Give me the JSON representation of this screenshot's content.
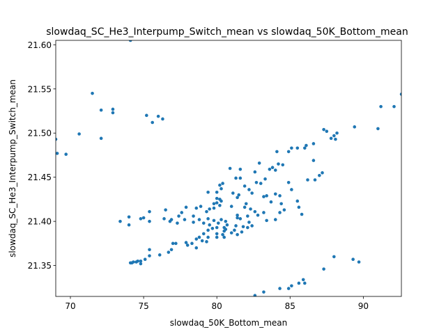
{
  "chart_data": {
    "type": "scatter",
    "title": "slowdaq_SC_He3_Interpump_Switch_mean vs slowdaq_50K_Bottom_mean",
    "xlabel": "slowdaq_50K_Bottom_mean",
    "ylabel": "slowdaq_SC_He3_Interpump_Switch_mean",
    "xlim": [
      69.0,
      92.6
    ],
    "ylim": [
      21.315,
      21.605
    ],
    "xticks": [
      70,
      75,
      80,
      85,
      90
    ],
    "yticks": [
      21.35,
      21.4,
      21.45,
      21.5,
      21.55,
      21.6
    ],
    "xtick_labels": [
      "70",
      "75",
      "80",
      "85",
      "90"
    ],
    "ytick_labels": [
      "21.35",
      "21.40",
      "21.45",
      "21.50",
      "21.55",
      "21.60"
    ],
    "marker_color": "#1f77b4",
    "grid": false,
    "points": [
      [
        74.1,
        21.605
      ],
      [
        71.5,
        21.545
      ],
      [
        72.1,
        21.526
      ],
      [
        72.9,
        21.527
      ],
      [
        72.9,
        21.523
      ],
      [
        75.2,
        21.52
      ],
      [
        76.0,
        21.519
      ],
      [
        76.3,
        21.516
      ],
      [
        75.6,
        21.512
      ],
      [
        70.6,
        21.499
      ],
      [
        72.1,
        21.494
      ],
      [
        69.0,
        21.493
      ],
      [
        69.1,
        21.477
      ],
      [
        69.7,
        21.476
      ],
      [
        92.6,
        21.544
      ],
      [
        91.2,
        21.53
      ],
      [
        92.1,
        21.53
      ],
      [
        89.4,
        21.507
      ],
      [
        91.0,
        21.505
      ],
      [
        87.3,
        21.504
      ],
      [
        87.5,
        21.502
      ],
      [
        88.2,
        21.5
      ],
      [
        88.0,
        21.497
      ],
      [
        87.8,
        21.494
      ],
      [
        88.1,
        21.493
      ],
      [
        86.1,
        21.486
      ],
      [
        86.0,
        21.483
      ],
      [
        85.5,
        21.483
      ],
      [
        85.1,
        21.483
      ],
      [
        84.9,
        21.479
      ],
      [
        84.1,
        21.479
      ],
      [
        86.6,
        21.488
      ],
      [
        86.6,
        21.469
      ],
      [
        84.2,
        21.465
      ],
      [
        84.5,
        21.464
      ],
      [
        83.8,
        21.461
      ],
      [
        83.6,
        21.459
      ],
      [
        84.0,
        21.458
      ],
      [
        82.9,
        21.466
      ],
      [
        82.6,
        21.456
      ],
      [
        81.6,
        21.459
      ],
      [
        80.9,
        21.46
      ],
      [
        87.0,
        21.452
      ],
      [
        87.2,
        21.455
      ],
      [
        86.7,
        21.447
      ],
      [
        86.2,
        21.447
      ],
      [
        84.9,
        21.444
      ],
      [
        83.3,
        21.448
      ],
      [
        83.0,
        21.443
      ],
      [
        82.7,
        21.444
      ],
      [
        81.3,
        21.449
      ],
      [
        81.6,
        21.449
      ],
      [
        81.9,
        21.44
      ],
      [
        80.4,
        21.443
      ],
      [
        80.2,
        21.441
      ],
      [
        80.3,
        21.437
      ],
      [
        80.0,
        21.433
      ],
      [
        79.4,
        21.433
      ],
      [
        81.5,
        21.43
      ],
      [
        81.1,
        21.432
      ],
      [
        81.4,
        21.427
      ],
      [
        82.2,
        21.436
      ],
      [
        82.4,
        21.432
      ],
      [
        83.2,
        21.428
      ],
      [
        83.4,
        21.429
      ],
      [
        84.0,
        21.431
      ],
      [
        84.3,
        21.429
      ],
      [
        85.1,
        21.436
      ],
      [
        85.5,
        21.423
      ],
      [
        84.4,
        21.42
      ],
      [
        83.7,
        21.422
      ],
      [
        82.0,
        21.42
      ],
      [
        81.9,
        21.416
      ],
      [
        82.3,
        21.414
      ],
      [
        81.0,
        21.417
      ],
      [
        80.3,
        21.423
      ],
      [
        80.0,
        21.426
      ],
      [
        80.2,
        21.425
      ],
      [
        80.0,
        21.421
      ],
      [
        79.8,
        21.42
      ],
      [
        80.2,
        21.418
      ],
      [
        79.5,
        21.414
      ],
      [
        79.8,
        21.415
      ],
      [
        78.9,
        21.417
      ],
      [
        78.6,
        21.415
      ],
      [
        79.3,
        21.411
      ],
      [
        77.9,
        21.416
      ],
      [
        77.6,
        21.41
      ],
      [
        76.5,
        21.413
      ],
      [
        77.4,
        21.406
      ],
      [
        78.4,
        21.406
      ],
      [
        75.4,
        21.411
      ],
      [
        75.0,
        21.404
      ],
      [
        74.8,
        21.403
      ],
      [
        74.0,
        21.405
      ],
      [
        74.0,
        21.396
      ],
      [
        73.4,
        21.4
      ],
      [
        75.4,
        21.4
      ],
      [
        76.4,
        21.403
      ],
      [
        76.9,
        21.402
      ],
      [
        76.8,
        21.4
      ],
      [
        77.3,
        21.398
      ],
      [
        78.4,
        21.399
      ],
      [
        77.8,
        21.402
      ],
      [
        78.8,
        21.402
      ],
      [
        79.1,
        21.398
      ],
      [
        79.4,
        21.403
      ],
      [
        79.8,
        21.401
      ],
      [
        80.1,
        21.398
      ],
      [
        80.3,
        21.402
      ],
      [
        80.6,
        21.4
      ],
      [
        81.4,
        21.404
      ],
      [
        81.4,
        21.407
      ],
      [
        81.6,
        21.403
      ],
      [
        82.1,
        21.406
      ],
      [
        82.2,
        21.399
      ],
      [
        82.8,
        21.407
      ],
      [
        82.6,
        21.411
      ],
      [
        83.2,
        21.41
      ],
      [
        83.4,
        21.401
      ],
      [
        84.0,
        21.402
      ],
      [
        84.3,
        21.41
      ],
      [
        84.6,
        21.413
      ],
      [
        85.8,
        21.408
      ],
      [
        85.6,
        21.416
      ],
      [
        79.5,
        21.396
      ],
      [
        79.7,
        21.392
      ],
      [
        80.0,
        21.393
      ],
      [
        80.5,
        21.393
      ],
      [
        80.6,
        21.391
      ],
      [
        80.7,
        21.396
      ],
      [
        81.3,
        21.395
      ],
      [
        81.8,
        21.394
      ],
      [
        81.2,
        21.39
      ],
      [
        81.0,
        21.387
      ],
      [
        80.5,
        21.389
      ],
      [
        80.0,
        21.386
      ],
      [
        79.4,
        21.39
      ],
      [
        79.1,
        21.386
      ],
      [
        78.8,
        21.382
      ],
      [
        78.6,
        21.38
      ],
      [
        79.0,
        21.378
      ],
      [
        79.3,
        21.377
      ],
      [
        80.0,
        21.382
      ],
      [
        80.4,
        21.385
      ],
      [
        80.5,
        21.382
      ],
      [
        81.4,
        21.385
      ],
      [
        81.7,
        21.388
      ],
      [
        82.1,
        21.393
      ],
      [
        82.4,
        21.395
      ],
      [
        78.3,
        21.375
      ],
      [
        78.0,
        21.373
      ],
      [
        77.9,
        21.376
      ],
      [
        79.4,
        21.382
      ],
      [
        78.6,
        21.37
      ],
      [
        77.2,
        21.375
      ],
      [
        77.0,
        21.375
      ],
      [
        76.9,
        21.368
      ],
      [
        76.7,
        21.365
      ],
      [
        76.1,
        21.362
      ],
      [
        75.4,
        21.368
      ],
      [
        75.4,
        21.361
      ],
      [
        75.1,
        21.357
      ],
      [
        74.8,
        21.355
      ],
      [
        74.6,
        21.355
      ],
      [
        74.5,
        21.354
      ],
      [
        74.3,
        21.354
      ],
      [
        74.2,
        21.353
      ],
      [
        74.1,
        21.353
      ],
      [
        74.8,
        21.352
      ],
      [
        87.3,
        21.346
      ],
      [
        88.0,
        21.36
      ],
      [
        89.3,
        21.357
      ],
      [
        89.7,
        21.354
      ],
      [
        85.9,
        21.334
      ],
      [
        86.0,
        21.33
      ],
      [
        85.6,
        21.33
      ],
      [
        85.1,
        21.327
      ],
      [
        84.9,
        21.324
      ],
      [
        84.3,
        21.324
      ],
      [
        83.2,
        21.32
      ],
      [
        82.6,
        21.316
      ]
    ]
  }
}
